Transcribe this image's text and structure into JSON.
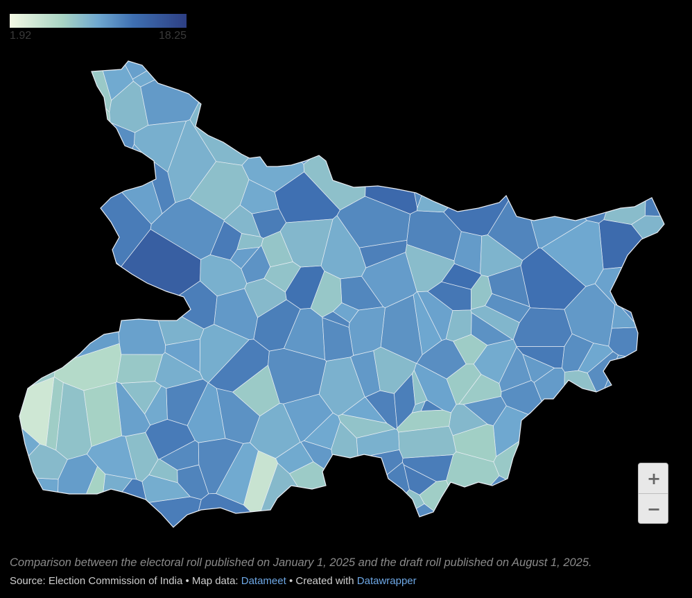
{
  "legend": {
    "min_label": "1.92",
    "max_label": "18.25",
    "min": 1.92,
    "max": 18.25,
    "gradient": [
      "#f4f9e4",
      "#a8d4c4",
      "#6fa8d0",
      "#3e6fb1",
      "#2d3f84"
    ]
  },
  "zoom": {
    "plus_label": "+",
    "minus_label": "−"
  },
  "caption": "Comparison between the electoral roll published on January 1, 2025 and the draft roll published on August 1, 2025.",
  "footer": {
    "source_prefix": "Source: Election Commission of India • Map data: ",
    "map_data_link": "Datameet",
    "separator": " • Created with ",
    "created_with_link": "Datawrapper"
  },
  "colors": {
    "background": "#000000",
    "region_border": "#e9eef5",
    "link": "#6ea8e6"
  }
}
